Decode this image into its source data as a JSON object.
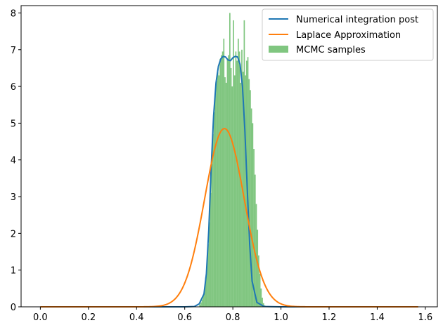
{
  "chart_data": {
    "type": "histogram+line",
    "title": "",
    "xlabel": "",
    "ylabel": "",
    "xlim": [
      -0.08,
      1.65
    ],
    "ylim": [
      0,
      8.2
    ],
    "grid": false,
    "legend_placement": "top-right",
    "x_ticks": [
      0.0,
      0.2,
      0.4,
      0.6,
      0.8,
      1.0,
      1.2,
      1.4,
      1.6
    ],
    "x_tick_labels": [
      "0.0",
      "0.2",
      "0.4",
      "0.6",
      "0.8",
      "1.0",
      "1.2",
      "1.4",
      "1.6"
    ],
    "y_ticks": [
      0,
      1,
      2,
      3,
      4,
      5,
      6,
      7,
      8
    ],
    "y_tick_labels": [
      "0",
      "1",
      "2",
      "3",
      "4",
      "5",
      "6",
      "7",
      "8"
    ],
    "series": [
      {
        "name": "Numerical integration post",
        "kind": "line",
        "color": "#1f77b4",
        "x": [
          0.0,
          0.5,
          0.6,
          0.64,
          0.66,
          0.68,
          0.69,
          0.7,
          0.71,
          0.72,
          0.73,
          0.74,
          0.75,
          0.76,
          0.77,
          0.78,
          0.79,
          0.8,
          0.81,
          0.82,
          0.83,
          0.84,
          0.85,
          0.86,
          0.87,
          0.88,
          0.9,
          0.93,
          1.0,
          1.2,
          1.57
        ],
        "y": [
          0.0,
          0.0,
          0.0,
          0.01,
          0.08,
          0.35,
          0.9,
          2.1,
          3.8,
          5.2,
          6.1,
          6.55,
          6.75,
          6.82,
          6.8,
          6.72,
          6.7,
          6.78,
          6.82,
          6.8,
          6.6,
          6.0,
          4.8,
          3.2,
          1.7,
          0.7,
          0.12,
          0.01,
          0.0,
          0.0,
          0.0
        ]
      },
      {
        "name": "Laplace Approximation",
        "kind": "line",
        "color": "#ff7f0e",
        "mean": 0.765,
        "sd": 0.0822,
        "x_range": [
          0.0,
          1.57
        ]
      },
      {
        "name": "MCMC samples",
        "kind": "histogram",
        "color": "#2ca02c",
        "alpha": 0.6,
        "bin_width": 0.005,
        "bin_start": 0.66,
        "counts_density": [
          0.06,
          0.12,
          0.2,
          0.3,
          0.5,
          0.8,
          1.2,
          1.7,
          2.3,
          3.1,
          3.9,
          4.7,
          5.3,
          5.8,
          6.15,
          6.4,
          6.3,
          6.75,
          6.85,
          6.95,
          7.3,
          6.25,
          6.1,
          6.75,
          6.85,
          8.0,
          6.5,
          6.0,
          7.8,
          6.3,
          6.95,
          6.7,
          7.3,
          6.95,
          6.1,
          7.0,
          6.4,
          7.8,
          6.3,
          6.7,
          6.8,
          6.2,
          5.9,
          5.4,
          5.0,
          4.3,
          3.6,
          2.8,
          2.1,
          1.4,
          0.9,
          0.5,
          0.25,
          0.1,
          0.04
        ]
      }
    ],
    "legend": [
      "Numerical integration post",
      "Laplace Approximation",
      "MCMC samples"
    ]
  }
}
